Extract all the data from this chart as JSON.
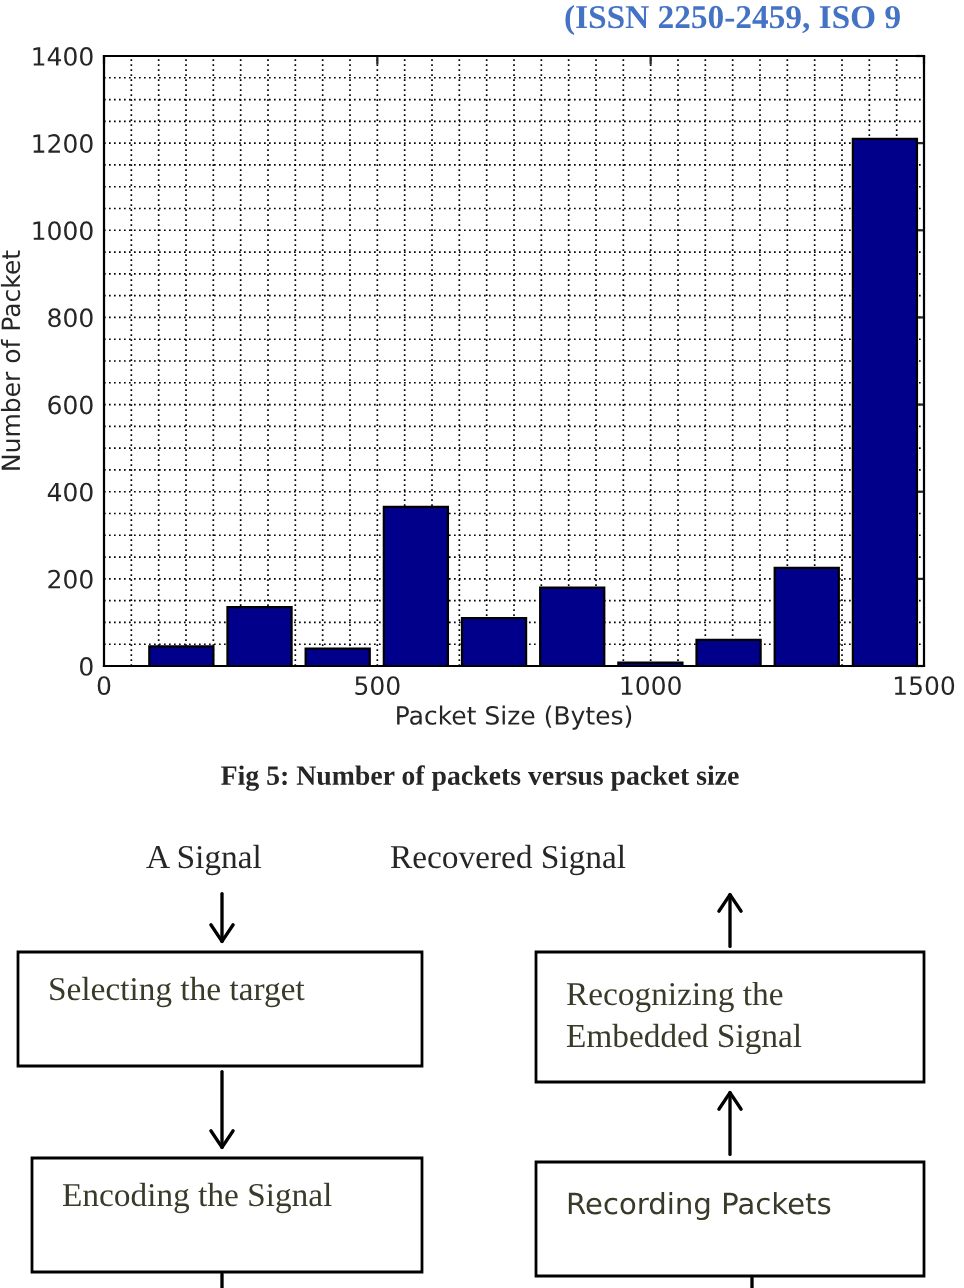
{
  "chart_data": {
    "type": "histogram",
    "xlabel": "Packet Size (Bytes)",
    "ylabel": "Number of Packet",
    "bins": [
      70,
      213,
      356,
      499,
      642,
      785,
      928,
      1071,
      1214,
      1357,
      1500
    ],
    "values": [
      45,
      135,
      40,
      365,
      110,
      180,
      8,
      60,
      225,
      1210
    ],
    "color": "#00008b",
    "xlim": [
      0,
      1500
    ],
    "xticks": [
      0,
      500,
      1000,
      1500
    ],
    "ylim": [
      0,
      1400
    ],
    "yticks": [
      0,
      200,
      400,
      600,
      800,
      1000,
      1200,
      1400
    ],
    "grid": true,
    "annotations": [
      "(ISSN 2250-2459, ISO 9",
      "Fig 5: Number of packets versus packet size",
      "A Signal",
      "Recovered Signal",
      "Selecting the target",
      "Recognizing the\nEmbedded Signal",
      "Encoding the Signal",
      "Recording Packets"
    ]
  }
}
